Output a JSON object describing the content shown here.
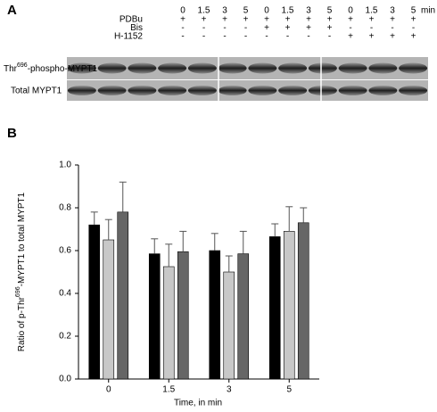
{
  "panel_a": {
    "label": "A",
    "times": [
      "0",
      "1.5",
      "3",
      "5",
      "0",
      "1.5",
      "3",
      "5",
      "0",
      "1.5",
      "3",
      "5"
    ],
    "time_unit": "min",
    "treatments": [
      {
        "label": "PDBu",
        "signs": [
          "+",
          "+",
          "+",
          "+",
          "+",
          "+",
          "+",
          "+",
          "+",
          "+",
          "+",
          "+"
        ]
      },
      {
        "label": "Bis",
        "signs": [
          "-",
          "-",
          "-",
          "-",
          "+",
          "+",
          "+",
          "+",
          "-",
          "-",
          "-",
          "-"
        ]
      },
      {
        "label": "H-1152",
        "signs": [
          "-",
          "-",
          "-",
          "-",
          "-",
          "-",
          "-",
          "-",
          "+",
          "+",
          "+",
          "+"
        ]
      }
    ],
    "blot_labels": [
      [
        "Thr",
        "696",
        "-phospho-MYPT1"
      ],
      [
        "Total MYPT1"
      ]
    ]
  },
  "chart_data": {
    "type": "bar",
    "label": "B",
    "ylabel_parts": [
      "Ratio of p-Thr",
      "696",
      "-MYPT1 to total MYPT1"
    ],
    "xlabel": "Time, in min",
    "categories": [
      "0",
      "1.5",
      "3",
      "5"
    ],
    "series": [
      {
        "color": "#000000",
        "values": [
          0.72,
          0.585,
          0.6,
          0.665
        ],
        "errors": [
          0.06,
          0.07,
          0.08,
          0.06
        ]
      },
      {
        "color": "#c8c8c8",
        "values": [
          0.65,
          0.525,
          0.5,
          0.69
        ],
        "errors": [
          0.095,
          0.105,
          0.075,
          0.115
        ]
      },
      {
        "color": "#666666",
        "values": [
          0.78,
          0.595,
          0.585,
          0.73
        ],
        "errors": [
          0.14,
          0.095,
          0.105,
          0.07
        ]
      }
    ],
    "ylim": [
      0,
      1.0
    ],
    "yticks": [
      {
        "value": 0,
        "label": "0.0"
      },
      0.2,
      0.4,
      0.6,
      0.8,
      {
        "value": 1.0,
        "label": "1.0"
      }
    ],
    "grid": false
  }
}
